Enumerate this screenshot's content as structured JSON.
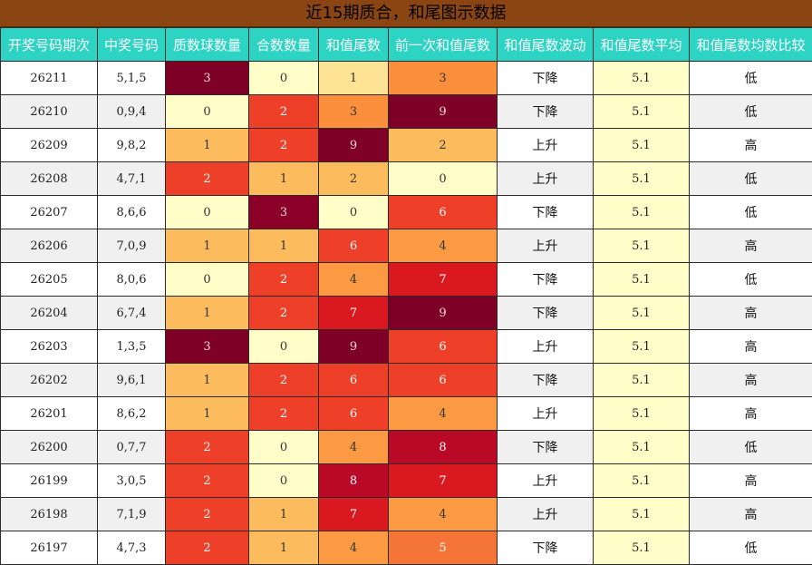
{
  "title": "近15期质合，和尾图示数据",
  "columns": [
    "开奖号码期次",
    "中奖号码",
    "质数球数量",
    "合数数量",
    "和值尾数",
    "前一次和值尾数",
    "和值尾数波动",
    "和值尾数平均",
    "和值尾数均数比较"
  ],
  "color_scale": {
    "0": "#fffec8",
    "1": "#fee396",
    "2": "#fcbc5d",
    "3": "#fc8f3c",
    "4": "#fb9a43",
    "5": "#f57538",
    "6": "#ee3f29",
    "7": "#d9181f",
    "8": "#ba0827",
    "9": "#7f0027"
  },
  "rows": [
    {
      "period": "26211",
      "numbers": "5,1,5",
      "prime": "3",
      "composite": "0",
      "tail": "1",
      "prev_tail": "3",
      "trend": "下降",
      "avg": "5.1",
      "compare": "低"
    },
    {
      "period": "26210",
      "numbers": "0,9,4",
      "prime": "0",
      "composite": "2",
      "tail": "3",
      "prev_tail": "9",
      "trend": "下降",
      "avg": "5.1",
      "compare": "低"
    },
    {
      "period": "26209",
      "numbers": "9,8,2",
      "prime": "1",
      "composite": "2",
      "tail": "9",
      "prev_tail": "2",
      "trend": "上升",
      "avg": "5.1",
      "compare": "高"
    },
    {
      "period": "26208",
      "numbers": "4,7,1",
      "prime": "2",
      "composite": "1",
      "tail": "2",
      "prev_tail": "0",
      "trend": "上升",
      "avg": "5.1",
      "compare": "低"
    },
    {
      "period": "26207",
      "numbers": "8,6,6",
      "prime": "0",
      "composite": "3",
      "tail": "0",
      "prev_tail": "6",
      "trend": "下降",
      "avg": "5.1",
      "compare": "低"
    },
    {
      "period": "26206",
      "numbers": "7,0,9",
      "prime": "1",
      "composite": "1",
      "tail": "6",
      "prev_tail": "4",
      "trend": "上升",
      "avg": "5.1",
      "compare": "高"
    },
    {
      "period": "26205",
      "numbers": "8,0,6",
      "prime": "0",
      "composite": "2",
      "tail": "4",
      "prev_tail": "7",
      "trend": "下降",
      "avg": "5.1",
      "compare": "低"
    },
    {
      "period": "26204",
      "numbers": "6,7,4",
      "prime": "1",
      "composite": "2",
      "tail": "7",
      "prev_tail": "9",
      "trend": "下降",
      "avg": "5.1",
      "compare": "高"
    },
    {
      "period": "26203",
      "numbers": "1,3,5",
      "prime": "3",
      "composite": "0",
      "tail": "9",
      "prev_tail": "6",
      "trend": "上升",
      "avg": "5.1",
      "compare": "高"
    },
    {
      "period": "26202",
      "numbers": "9,6,1",
      "prime": "1",
      "composite": "2",
      "tail": "6",
      "prev_tail": "6",
      "trend": "下降",
      "avg": "5.1",
      "compare": "高"
    },
    {
      "period": "26201",
      "numbers": "8,6,2",
      "prime": "1",
      "composite": "2",
      "tail": "6",
      "prev_tail": "4",
      "trend": "上升",
      "avg": "5.1",
      "compare": "高"
    },
    {
      "period": "26200",
      "numbers": "0,7,7",
      "prime": "2",
      "composite": "0",
      "tail": "4",
      "prev_tail": "8",
      "trend": "下降",
      "avg": "5.1",
      "compare": "低"
    },
    {
      "period": "26199",
      "numbers": "3,0,5",
      "prime": "2",
      "composite": "0",
      "tail": "8",
      "prev_tail": "7",
      "trend": "上升",
      "avg": "5.1",
      "compare": "高"
    },
    {
      "period": "26198",
      "numbers": "7,1,9",
      "prime": "2",
      "composite": "1",
      "tail": "7",
      "prev_tail": "4",
      "trend": "上升",
      "avg": "5.1",
      "compare": "高"
    },
    {
      "period": "26197",
      "numbers": "4,7,3",
      "prime": "2",
      "composite": "1",
      "tail": "4",
      "prev_tail": "5",
      "trend": "下降",
      "avg": "5.1",
      "compare": "低"
    }
  ]
}
